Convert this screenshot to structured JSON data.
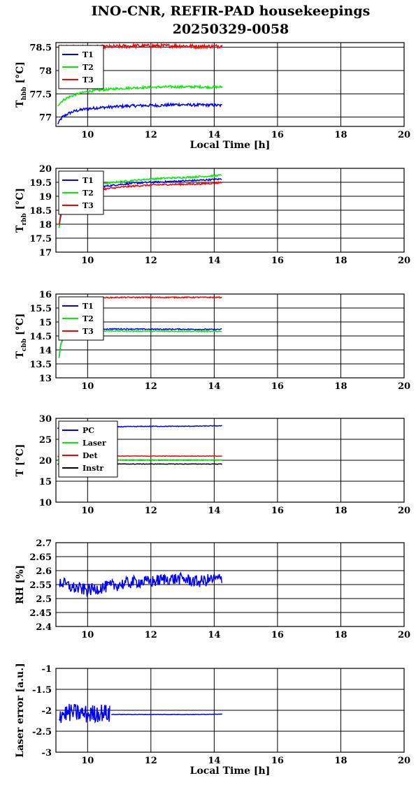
{
  "figure": {
    "title_line1": "INO-CNR, REFIR-PAD housekeepings",
    "title_line2": "20250329-0058"
  },
  "chart_data": [
    {
      "type": "line",
      "ylabel_main": "T",
      "ylabel_sub": "hbb",
      "ylabel_tail": " [°C]",
      "xlabel": "Local Time [h]",
      "xlim": [
        9,
        20
      ],
      "ylim": [
        76.8,
        78.6
      ],
      "xticks": [
        10,
        12,
        14,
        16,
        18,
        20
      ],
      "yticks": [
        77,
        77.5,
        78,
        78.5
      ],
      "ytick_labels": [
        "77",
        "77.5",
        "78",
        "78.5"
      ],
      "grid": true,
      "legend": "top-left",
      "series": [
        {
          "name": "T1",
          "color": "#0000ff",
          "noise": 0.03,
          "x": [
            9.05,
            9.2,
            9.4,
            9.6,
            9.9,
            10.3,
            10.8,
            11.3,
            11.8,
            12.3,
            12.8,
            13.3,
            13.8,
            14.25
          ],
          "y": [
            76.85,
            77.0,
            77.08,
            77.13,
            77.17,
            77.2,
            77.22,
            77.24,
            77.25,
            77.25,
            77.27,
            77.26,
            77.26,
            77.25
          ]
        },
        {
          "name": "T2",
          "color": "#00ee00",
          "noise": 0.025,
          "x": [
            9.05,
            9.2,
            9.4,
            9.7,
            10.0,
            10.4,
            10.9,
            11.5,
            12.0,
            12.5,
            13.0,
            13.5,
            14.0,
            14.25
          ],
          "y": [
            77.25,
            77.35,
            77.43,
            77.5,
            77.55,
            77.58,
            77.61,
            77.63,
            77.64,
            77.65,
            77.65,
            77.65,
            77.64,
            77.65
          ]
        },
        {
          "name": "T3",
          "color": "#ff0000",
          "noise": 0.04,
          "x": [
            9.05,
            9.5,
            10.0,
            10.5,
            11.0,
            11.5,
            12.0,
            12.5,
            13.0,
            13.5,
            14.0,
            14.25
          ],
          "y": [
            78.5,
            78.5,
            78.5,
            78.51,
            78.52,
            78.53,
            78.53,
            78.53,
            78.53,
            78.52,
            78.52,
            78.53
          ]
        }
      ]
    },
    {
      "type": "line",
      "ylabel_main": "T",
      "ylabel_sub": "rbb",
      "ylabel_tail": " [°C]",
      "xlabel": "",
      "xlim": [
        9,
        20
      ],
      "ylim": [
        17,
        20
      ],
      "xticks": [
        10,
        12,
        14,
        16,
        18,
        20
      ],
      "yticks": [
        17,
        17.5,
        18,
        18.5,
        19,
        19.5,
        20
      ],
      "ytick_labels": [
        "17",
        "17.5",
        "18",
        "18.5",
        "19",
        "19.5",
        "20"
      ],
      "grid": true,
      "legend": "top-left",
      "series": [
        {
          "name": "T1",
          "color": "#0000ff",
          "noise": 0.03,
          "x": [
            9.1,
            9.15,
            9.3,
            9.6,
            10.0,
            10.5,
            11.0,
            11.5,
            12.0,
            12.5,
            13.0,
            13.5,
            14.0,
            14.25
          ],
          "y": [
            17.9,
            18.3,
            18.8,
            19.1,
            19.25,
            19.35,
            19.42,
            19.47,
            19.5,
            19.52,
            19.55,
            19.57,
            19.6,
            19.62
          ]
        },
        {
          "name": "T2",
          "color": "#00ee00",
          "noise": 0.03,
          "x": [
            9.1,
            9.15,
            9.3,
            9.6,
            10.0,
            10.5,
            11.0,
            11.5,
            12.0,
            12.5,
            13.0,
            13.5,
            14.0,
            14.25
          ],
          "y": [
            17.9,
            18.4,
            18.9,
            19.2,
            19.35,
            19.45,
            19.52,
            19.57,
            19.62,
            19.65,
            19.67,
            19.7,
            19.73,
            19.76
          ]
        },
        {
          "name": "T3",
          "color": "#ff0000",
          "noise": 0.03,
          "x": [
            9.1,
            9.15,
            9.3,
            9.6,
            10.0,
            10.5,
            11.0,
            11.5,
            12.0,
            12.5,
            13.0,
            13.5,
            14.0,
            14.25
          ],
          "y": [
            18.0,
            18.3,
            18.7,
            19.0,
            19.15,
            19.25,
            19.32,
            19.37,
            19.4,
            19.42,
            19.43,
            19.44,
            19.47,
            19.5
          ]
        }
      ]
    },
    {
      "type": "line",
      "ylabel_main": "T",
      "ylabel_sub": "cbb",
      "ylabel_tail": " [°C]",
      "xlabel": "",
      "xlim": [
        9,
        20
      ],
      "ylim": [
        13,
        16
      ],
      "xticks": [
        10,
        12,
        14,
        16,
        18,
        20
      ],
      "yticks": [
        13,
        13.5,
        14,
        14.5,
        15,
        15.5,
        16
      ],
      "ytick_labels": [
        "13",
        "13.5",
        "14",
        "14.5",
        "15",
        "15.5",
        "16"
      ],
      "grid": true,
      "legend": "top-left",
      "series": [
        {
          "name": "T1",
          "color": "#0000ff",
          "noise": 0.02,
          "x": [
            9.1,
            9.15,
            9.3,
            9.6,
            10.0,
            11.0,
            12.0,
            13.0,
            14.0,
            14.25
          ],
          "y": [
            13.7,
            14.2,
            14.6,
            14.72,
            14.74,
            14.75,
            14.74,
            14.74,
            14.73,
            14.74
          ]
        },
        {
          "name": "T2",
          "color": "#00ee00",
          "noise": 0.02,
          "x": [
            9.1,
            9.15,
            9.3,
            9.6,
            10.0,
            11.0,
            12.0,
            13.0,
            14.0,
            14.25
          ],
          "y": [
            13.7,
            14.2,
            14.55,
            14.65,
            14.68,
            14.68,
            14.67,
            14.67,
            14.66,
            14.67
          ]
        },
        {
          "name": "T3",
          "color": "#ff0000",
          "noise": 0.02,
          "x": [
            9.1,
            9.5,
            10.0,
            10.5,
            11.0,
            12.0,
            13.0,
            14.0,
            14.25
          ],
          "y": [
            15.85,
            15.86,
            15.87,
            15.87,
            15.88,
            15.88,
            15.88,
            15.88,
            15.88
          ]
        }
      ]
    },
    {
      "type": "line",
      "ylabel_main": "T [°C]",
      "ylabel_sub": "",
      "ylabel_tail": "",
      "xlabel": "",
      "xlim": [
        9,
        20
      ],
      "ylim": [
        10,
        30
      ],
      "xticks": [
        10,
        12,
        14,
        16,
        18,
        20
      ],
      "yticks": [
        10,
        15,
        20,
        25,
        30
      ],
      "ytick_labels": [
        "10",
        "15",
        "20",
        "25",
        "30"
      ],
      "grid": true,
      "legend": "top-left",
      "series": [
        {
          "name": "PC",
          "color": "#0000ff",
          "noise": 0.08,
          "x": [
            9.05,
            9.5,
            10.0,
            10.5,
            11.0,
            12.0,
            13.0,
            14.0,
            14.25
          ],
          "y": [
            27.6,
            27.8,
            27.9,
            28.0,
            28.0,
            28.1,
            28.1,
            28.2,
            28.2
          ]
        },
        {
          "name": "Laser",
          "color": "#00ee00",
          "noise": 0.05,
          "x": [
            9.05,
            10.0,
            11.0,
            12.0,
            13.0,
            14.0,
            14.25
          ],
          "y": [
            20.1,
            20.1,
            20.1,
            20.1,
            20.1,
            20.1,
            20.1
          ]
        },
        {
          "name": "Det",
          "color": "#ff0000",
          "noise": 0.05,
          "x": [
            9.05,
            10.0,
            11.0,
            12.0,
            13.0,
            14.0,
            14.25
          ],
          "y": [
            20.9,
            20.95,
            21.0,
            21.0,
            21.0,
            21.0,
            21.0
          ]
        },
        {
          "name": "Instr",
          "color": "#000000",
          "noise": 0.06,
          "x": [
            9.05,
            10.0,
            11.0,
            12.0,
            13.0,
            14.0,
            14.25
          ],
          "y": [
            19.1,
            19.1,
            19.1,
            19.1,
            19.1,
            19.1,
            19.1
          ]
        }
      ]
    },
    {
      "type": "line",
      "ylabel_main": "RH [%]",
      "ylabel_sub": "",
      "ylabel_tail": "",
      "xlabel": "",
      "xlim": [
        9,
        20
      ],
      "ylim": [
        2.4,
        2.7
      ],
      "xticks": [
        10,
        12,
        14,
        16,
        18,
        20
      ],
      "yticks": [
        2.4,
        2.45,
        2.5,
        2.55,
        2.6,
        2.65,
        2.7
      ],
      "ytick_labels": [
        "2.4",
        "2.45",
        "2.5",
        "2.55",
        "2.6",
        "2.65",
        "2.7"
      ],
      "grid": true,
      "legend": "none",
      "series": [
        {
          "name": "",
          "color": "#0000ff",
          "noise": 0.022,
          "x": [
            9.1,
            9.5,
            10.0,
            10.5,
            11.0,
            11.5,
            12.0,
            12.5,
            13.0,
            13.5,
            14.0,
            14.25
          ],
          "y": [
            2.56,
            2.54,
            2.53,
            2.54,
            2.55,
            2.56,
            2.56,
            2.57,
            2.57,
            2.56,
            2.57,
            2.57
          ]
        }
      ]
    },
    {
      "type": "line",
      "ylabel_main": "Laser error [a.u.]",
      "ylabel_sub": "",
      "ylabel_tail": "",
      "xlabel": "Local Time [h]",
      "xlim": [
        9,
        20
      ],
      "ylim": [
        -3,
        -1
      ],
      "xticks": [
        10,
        12,
        14,
        16,
        18,
        20
      ],
      "yticks": [
        -3,
        -2.5,
        -2,
        -1.5,
        -1
      ],
      "ytick_labels": [
        "-3",
        "-2.5",
        "-2",
        "-1.5",
        "-1"
      ],
      "grid": true,
      "legend": "none",
      "series": [
        {
          "name": "",
          "color": "#0000ff",
          "noise": 0.22,
          "x": [
            9.1,
            9.5,
            10.0,
            10.5,
            10.7
          ],
          "y": [
            -2.1,
            -2.05,
            -2.1,
            -2.05,
            -2.1
          ]
        },
        {
          "name": "",
          "color": "#0000ff",
          "noise": 0.005,
          "x": [
            10.75,
            11.5,
            12.5,
            13.5,
            14.25
          ],
          "y": [
            -2.1,
            -2.1,
            -2.1,
            -2.1,
            -2.09
          ]
        }
      ]
    }
  ]
}
